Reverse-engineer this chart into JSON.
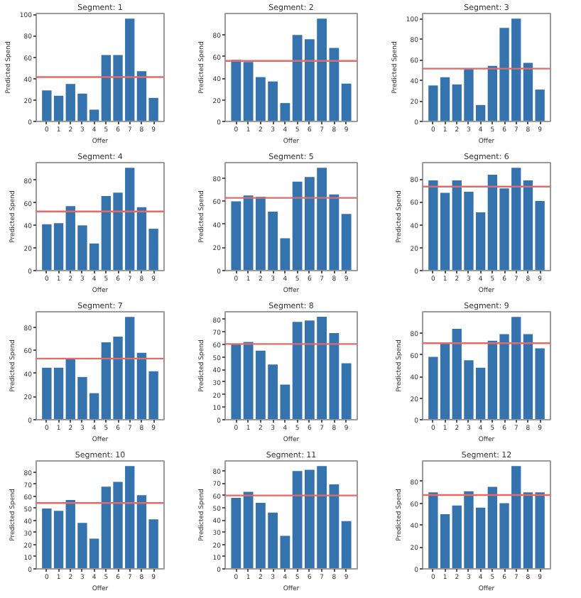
{
  "chart_data": [
    {
      "type": "bar",
      "title": "Segment: 1",
      "xlabel": "Offer",
      "ylabel": "Predicted Spend",
      "categories": [
        "0",
        "1",
        "2",
        "3",
        "4",
        "5",
        "6",
        "7",
        "8",
        "9"
      ],
      "values": [
        29,
        24,
        35,
        26,
        11,
        62,
        62,
        96,
        47,
        22
      ],
      "color": "#3473ad",
      "ylim": [
        0,
        100.8
      ],
      "yticks": [
        0,
        20,
        40,
        60,
        80,
        100
      ],
      "ref_lines": [
        {
          "axis": "y",
          "value": 41.4,
          "color": "#df6b6b"
        }
      ]
    },
    {
      "type": "bar",
      "title": "Segment: 2",
      "xlabel": "Offer",
      "ylabel": "Predicted Spend",
      "categories": [
        "0",
        "1",
        "2",
        "3",
        "4",
        "5",
        "6",
        "7",
        "8",
        "9"
      ],
      "values": [
        57,
        55,
        41,
        37,
        17,
        80,
        76,
        95,
        68,
        35
      ],
      "color": "#3473ad",
      "ylim": [
        0,
        99.8
      ],
      "yticks": [
        0,
        20,
        40,
        60,
        80
      ],
      "ref_lines": [
        {
          "axis": "y",
          "value": 56,
          "color": "#df6b6b"
        }
      ]
    },
    {
      "type": "bar",
      "title": "Segment: 3",
      "xlabel": "Offer",
      "ylabel": "Predicted Spend",
      "categories": [
        "0",
        "1",
        "2",
        "3",
        "4",
        "5",
        "6",
        "7",
        "8",
        "9"
      ],
      "values": [
        35,
        43,
        36,
        51,
        16,
        54,
        91,
        100,
        57,
        31
      ],
      "color": "#3473ad",
      "ylim": [
        0,
        105
      ],
      "yticks": [
        0,
        20,
        40,
        60,
        80,
        100
      ],
      "ref_lines": [
        {
          "axis": "y",
          "value": 51.4,
          "color": "#df6b6b"
        }
      ]
    },
    {
      "type": "bar",
      "title": "Segment: 4",
      "xlabel": "Offer",
      "ylabel": "Predicted Spend",
      "categories": [
        "0",
        "1",
        "2",
        "3",
        "4",
        "5",
        "6",
        "7",
        "8",
        "9"
      ],
      "values": [
        41,
        42,
        57,
        40,
        24,
        66,
        69,
        91,
        56,
        37
      ],
      "color": "#3473ad",
      "ylim": [
        0,
        95.5
      ],
      "yticks": [
        0,
        20,
        40,
        60,
        80
      ],
      "ref_lines": [
        {
          "axis": "y",
          "value": 52.3,
          "color": "#df6b6b"
        }
      ]
    },
    {
      "type": "bar",
      "title": "Segment: 5",
      "xlabel": "Offer",
      "ylabel": "Predicted Spend",
      "categories": [
        "0",
        "1",
        "2",
        "3",
        "4",
        "5",
        "6",
        "7",
        "8",
        "9"
      ],
      "values": [
        60,
        65,
        64,
        51,
        28,
        77,
        81,
        89,
        66,
        49
      ],
      "color": "#3473ad",
      "ylim": [
        0,
        93.5
      ],
      "yticks": [
        0,
        20,
        40,
        60,
        80
      ],
      "ref_lines": [
        {
          "axis": "y",
          "value": 63,
          "color": "#df6b6b"
        }
      ]
    },
    {
      "type": "bar",
      "title": "Segment: 6",
      "xlabel": "Offer",
      "ylabel": "Predicted Spend",
      "categories": [
        "0",
        "1",
        "2",
        "3",
        "4",
        "5",
        "6",
        "7",
        "8",
        "9"
      ],
      "values": [
        79,
        68,
        79,
        69,
        51,
        84,
        72,
        90,
        79,
        61
      ],
      "color": "#3473ad",
      "ylim": [
        0,
        94.5
      ],
      "yticks": [
        0,
        20,
        40,
        60,
        80
      ],
      "ref_lines": [
        {
          "axis": "y",
          "value": 73.5,
          "color": "#df6b6b"
        }
      ]
    },
    {
      "type": "bar",
      "title": "Segment: 7",
      "xlabel": "Offer",
      "ylabel": "Predicted Spend",
      "categories": [
        "0",
        "1",
        "2",
        "3",
        "4",
        "5",
        "6",
        "7",
        "8",
        "9"
      ],
      "values": [
        45,
        45,
        53,
        37,
        23,
        67,
        72,
        89,
        58,
        42
      ],
      "color": "#3473ad",
      "ylim": [
        0,
        93.5
      ],
      "yticks": [
        0,
        20,
        40,
        60,
        80
      ],
      "ref_lines": [
        {
          "axis": "y",
          "value": 53,
          "color": "#df6b6b"
        }
      ]
    },
    {
      "type": "bar",
      "title": "Segment: 8",
      "xlabel": "Offer",
      "ylabel": "Predicted Spend",
      "categories": [
        "0",
        "1",
        "2",
        "3",
        "4",
        "5",
        "6",
        "7",
        "8",
        "9"
      ],
      "values": [
        60,
        62,
        55,
        44,
        28,
        78,
        79,
        82,
        69,
        45
      ],
      "color": "#3473ad",
      "ylim": [
        0,
        86
      ],
      "yticks": [
        0,
        10,
        20,
        30,
        40,
        50,
        60,
        70,
        80
      ],
      "ref_lines": [
        {
          "axis": "y",
          "value": 60.3,
          "color": "#df6b6b"
        }
      ]
    },
    {
      "type": "bar",
      "title": "Segment: 9",
      "xlabel": "Offer",
      "ylabel": "Predicted Spend",
      "categories": [
        "0",
        "1",
        "2",
        "3",
        "4",
        "5",
        "6",
        "7",
        "8",
        "9"
      ],
      "values": [
        58,
        71,
        84,
        55,
        48,
        73,
        79,
        95,
        79,
        66
      ],
      "color": "#3473ad",
      "ylim": [
        0,
        99.7
      ],
      "yticks": [
        0,
        20,
        40,
        60,
        80
      ],
      "ref_lines": [
        {
          "axis": "y",
          "value": 70.7,
          "color": "#df6b6b"
        }
      ]
    },
    {
      "type": "bar",
      "title": "Segment: 10",
      "xlabel": "Offer",
      "ylabel": "Predicted Spend",
      "categories": [
        "0",
        "1",
        "2",
        "3",
        "4",
        "5",
        "6",
        "7",
        "8",
        "9"
      ],
      "values": [
        50,
        48,
        57,
        38,
        25,
        68,
        72,
        85,
        61,
        41
      ],
      "color": "#3473ad",
      "ylim": [
        0,
        89.3
      ],
      "yticks": [
        0,
        10,
        20,
        30,
        40,
        50,
        60,
        70,
        80
      ],
      "ref_lines": [
        {
          "axis": "y",
          "value": 54.5,
          "color": "#df6b6b"
        }
      ]
    },
    {
      "type": "bar",
      "title": "Segment: 11",
      "xlabel": "Offer",
      "ylabel": "Predicted Spend",
      "categories": [
        "0",
        "1",
        "2",
        "3",
        "4",
        "5",
        "6",
        "7",
        "8",
        "9"
      ],
      "values": [
        58,
        63,
        54,
        46,
        27,
        80,
        81,
        84,
        69,
        39
      ],
      "color": "#3473ad",
      "ylim": [
        0,
        88.2
      ],
      "yticks": [
        0,
        10,
        20,
        30,
        40,
        50,
        60,
        70,
        80
      ],
      "ref_lines": [
        {
          "axis": "y",
          "value": 60,
          "color": "#df6b6b"
        }
      ]
    },
    {
      "type": "bar",
      "title": "Segment: 12",
      "xlabel": "Offer",
      "ylabel": "Predicted Spend",
      "categories": [
        "0",
        "1",
        "2",
        "3",
        "4",
        "5",
        "6",
        "7",
        "8",
        "9"
      ],
      "values": [
        70,
        50,
        58,
        71,
        56,
        75,
        60,
        94,
        70,
        70
      ],
      "color": "#3473ad",
      "ylim": [
        0,
        98.7
      ],
      "yticks": [
        0,
        20,
        40,
        60,
        80
      ],
      "ref_lines": [
        {
          "axis": "y",
          "value": 67.5,
          "color": "#df6b6b"
        }
      ]
    }
  ]
}
